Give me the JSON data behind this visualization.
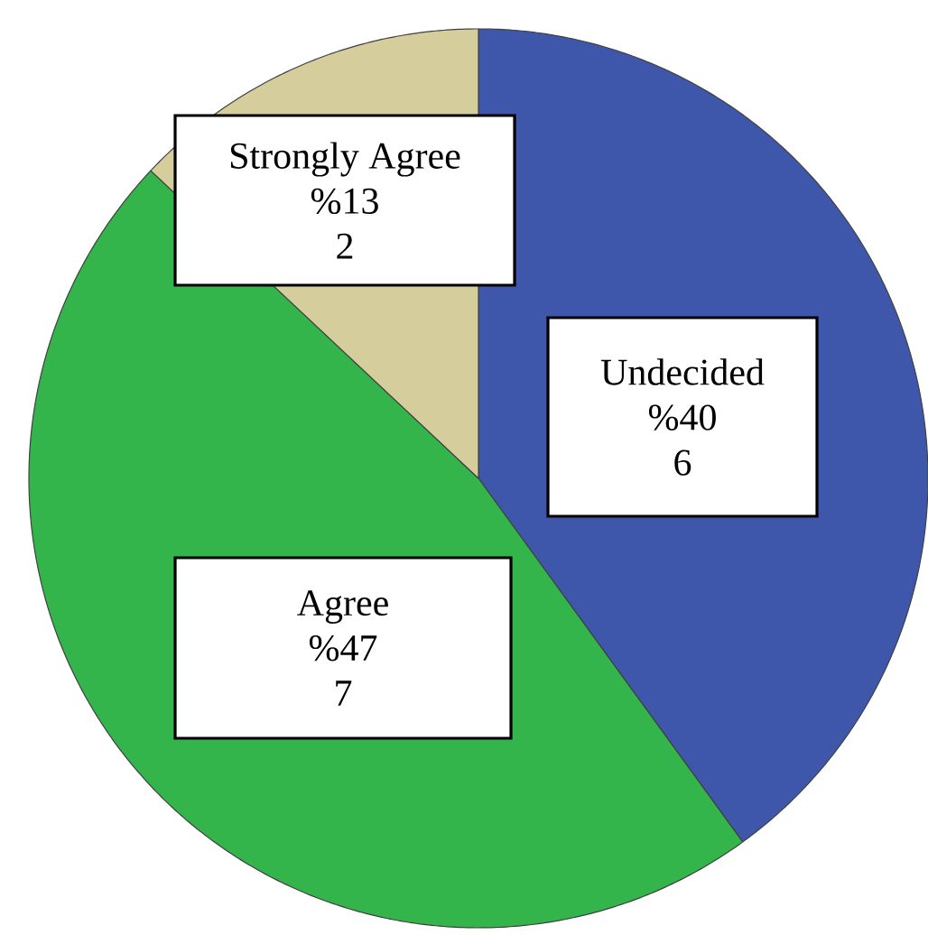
{
  "chart_data": {
    "type": "pie",
    "categories": [
      "Undecided",
      "Agree",
      "Strongly Agree"
    ],
    "values": [
      40,
      47,
      13
    ],
    "colors": [
      "#3f57ab",
      "#33b54b",
      "#d5cd9b"
    ],
    "value_labels": [
      "%40",
      "%47",
      "%13"
    ],
    "annotations": [
      "6",
      "7",
      "2"
    ]
  }
}
